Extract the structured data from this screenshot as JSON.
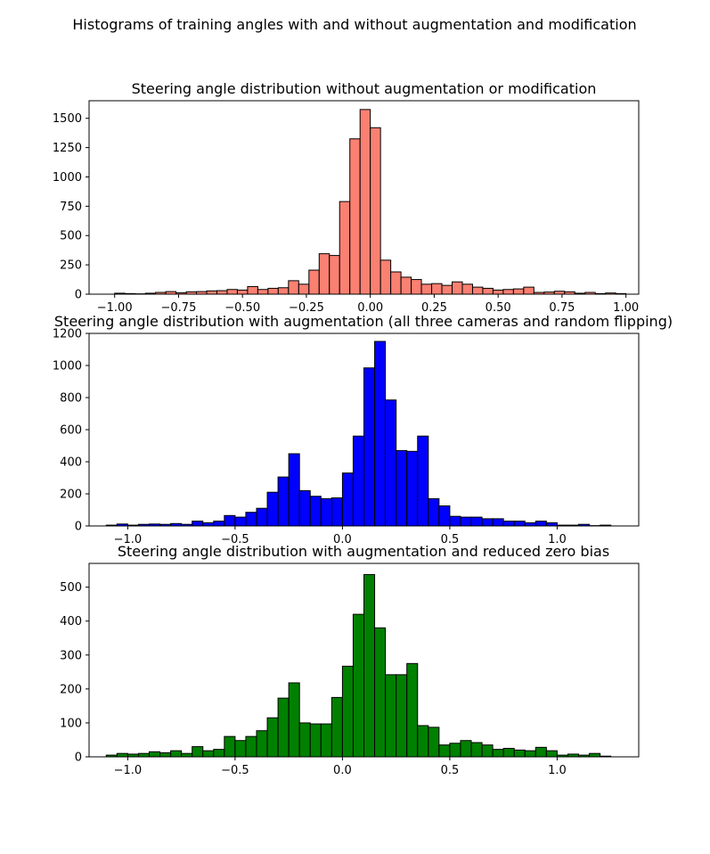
{
  "figure_title": "Histograms of training angles with and without augmentation and modification",
  "chart_data": [
    {
      "type": "bar",
      "title": "Steering angle distribution without augmentation or modification",
      "color": "#fa8072",
      "xlim": [
        -1.1,
        1.05
      ],
      "ylim": [
        0,
        1650
      ],
      "bin_width": 0.04,
      "xticks": [
        -1.0,
        -0.75,
        -0.5,
        -0.25,
        0.0,
        0.25,
        0.5,
        0.75,
        1.0
      ],
      "xtick_labels": [
        "−1.00",
        "−0.75",
        "−0.50",
        "−0.25",
        "0.00",
        "0.25",
        "0.50",
        "0.75",
        "1.00"
      ],
      "yticks": [
        0,
        250,
        500,
        750,
        1000,
        1250,
        1500
      ],
      "ytick_labels": [
        "0",
        "250",
        "500",
        "750",
        "1000",
        "1250",
        "1500"
      ],
      "bins_start": [
        -1.0,
        -0.96,
        -0.92,
        -0.88,
        -0.84,
        -0.8,
        -0.76,
        -0.72,
        -0.68,
        -0.64,
        -0.6,
        -0.56,
        -0.52,
        -0.48,
        -0.44,
        -0.4,
        -0.36,
        -0.32,
        -0.28,
        -0.24,
        -0.2,
        -0.16,
        -0.12,
        -0.08,
        -0.04,
        0.0,
        0.04,
        0.08,
        0.12,
        0.16,
        0.2,
        0.24,
        0.28,
        0.32,
        0.36,
        0.4,
        0.44,
        0.48,
        0.52,
        0.56,
        0.6,
        0.64,
        0.68,
        0.72,
        0.76,
        0.8,
        0.84,
        0.88,
        0.92,
        0.96
      ],
      "values": [
        8,
        5,
        3,
        8,
        15,
        22,
        12,
        20,
        22,
        28,
        30,
        40,
        35,
        65,
        40,
        50,
        55,
        115,
        85,
        205,
        345,
        330,
        790,
        1325,
        1575,
        1420,
        290,
        190,
        145,
        125,
        85,
        90,
        75,
        105,
        85,
        60,
        50,
        35,
        40,
        45,
        60,
        15,
        18,
        25,
        20,
        8,
        15,
        5,
        10,
        5
      ]
    },
    {
      "type": "bar",
      "title": "Steering angle distribution with augmentation (all three cameras and random flipping)",
      "color": "#0000ff",
      "xlim": [
        -1.18,
        1.38
      ],
      "ylim": [
        0,
        1200
      ],
      "bin_width": 0.05,
      "xticks": [
        -1.0,
        -0.5,
        0.0,
        0.5,
        1.0
      ],
      "xtick_labels": [
        "−1.0",
        "−0.5",
        "0.0",
        "0.5",
        "1.0"
      ],
      "yticks": [
        0,
        200,
        400,
        600,
        800,
        1000,
        1200
      ],
      "ytick_labels": [
        "0",
        "200",
        "400",
        "600",
        "800",
        "1000",
        "1200"
      ],
      "bins_start": [
        -1.1,
        -1.05,
        -1.0,
        -0.95,
        -0.9,
        -0.85,
        -0.8,
        -0.75,
        -0.7,
        -0.65,
        -0.6,
        -0.55,
        -0.5,
        -0.45,
        -0.4,
        -0.35,
        -0.3,
        -0.25,
        -0.2,
        -0.15,
        -0.1,
        -0.05,
        0.0,
        0.05,
        0.1,
        0.15,
        0.2,
        0.25,
        0.3,
        0.35,
        0.4,
        0.45,
        0.5,
        0.55,
        0.6,
        0.65,
        0.7,
        0.75,
        0.8,
        0.85,
        0.9,
        0.95,
        1.0,
        1.05,
        1.1,
        1.15,
        1.2
      ],
      "values": [
        5,
        12,
        5,
        10,
        12,
        10,
        15,
        10,
        30,
        20,
        30,
        65,
        55,
        85,
        110,
        210,
        305,
        450,
        220,
        185,
        170,
        175,
        330,
        560,
        985,
        1150,
        785,
        470,
        465,
        560,
        170,
        125,
        60,
        55,
        55,
        45,
        45,
        30,
        30,
        20,
        30,
        20,
        5,
        5,
        10,
        2,
        5
      ]
    },
    {
      "type": "bar",
      "title": "Steering angle distribution with augmentation and reduced zero bias",
      "color": "#008000",
      "xlim": [
        -1.18,
        1.38
      ],
      "ylim": [
        0,
        570
      ],
      "bin_width": 0.05,
      "xticks": [
        -1.0,
        -0.5,
        0.0,
        0.5,
        1.0
      ],
      "xtick_labels": [
        "−1.0",
        "−0.5",
        "0.0",
        "0.5",
        "1.0"
      ],
      "yticks": [
        0,
        100,
        200,
        300,
        400,
        500
      ],
      "ytick_labels": [
        "0",
        "100",
        "200",
        "300",
        "400",
        "500"
      ],
      "bins_start": [
        -1.1,
        -1.05,
        -1.0,
        -0.95,
        -0.9,
        -0.85,
        -0.8,
        -0.75,
        -0.7,
        -0.65,
        -0.6,
        -0.55,
        -0.5,
        -0.45,
        -0.4,
        -0.35,
        -0.3,
        -0.25,
        -0.2,
        -0.15,
        -0.1,
        -0.05,
        0.0,
        0.05,
        0.1,
        0.15,
        0.2,
        0.25,
        0.3,
        0.35,
        0.4,
        0.45,
        0.5,
        0.55,
        0.6,
        0.65,
        0.7,
        0.75,
        0.8,
        0.85,
        0.9,
        0.95,
        1.0,
        1.05,
        1.1,
        1.15,
        1.2
      ],
      "values": [
        5,
        10,
        8,
        10,
        15,
        12,
        18,
        10,
        30,
        18,
        22,
        60,
        48,
        60,
        77,
        115,
        173,
        218,
        100,
        97,
        97,
        175,
        267,
        420,
        537,
        380,
        242,
        242,
        275,
        92,
        87,
        35,
        40,
        48,
        42,
        35,
        22,
        25,
        20,
        18,
        28,
        18,
        5,
        8,
        5,
        10,
        2
      ]
    }
  ]
}
